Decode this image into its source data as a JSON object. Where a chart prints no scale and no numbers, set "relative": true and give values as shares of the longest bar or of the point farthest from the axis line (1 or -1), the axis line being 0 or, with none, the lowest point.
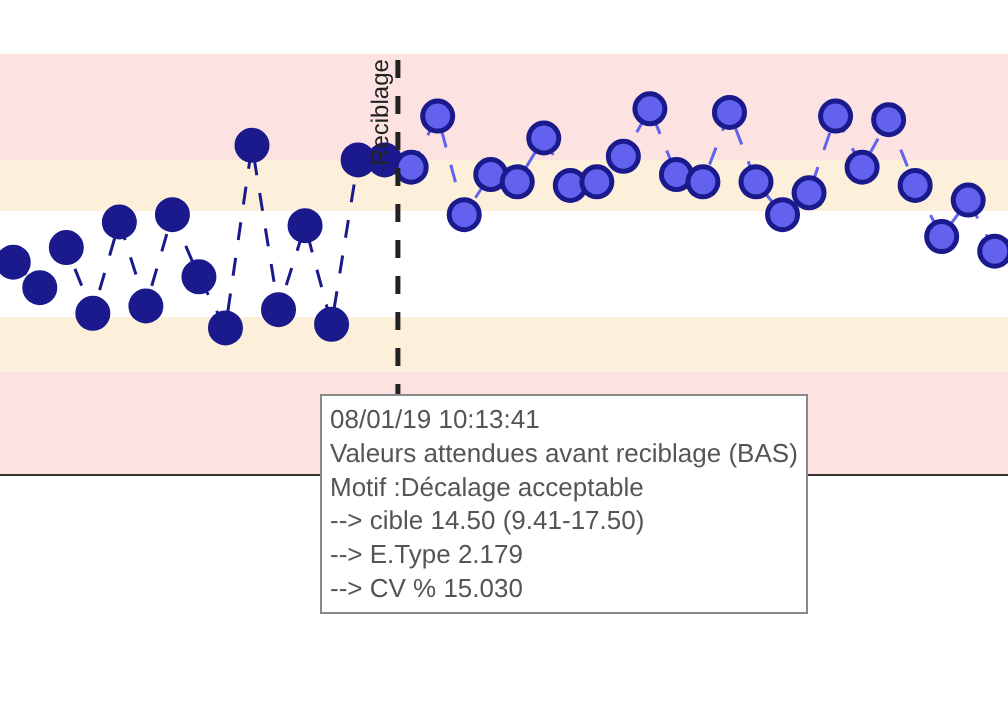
{
  "chart_data": {
    "type": "line",
    "relative": true,
    "marker": "circle",
    "line_style": "dashed",
    "categories": [
      null,
      null,
      null,
      null,
      null,
      null,
      null,
      null,
      null,
      null,
      null,
      null,
      null,
      null,
      null,
      null,
      null,
      null,
      null,
      null,
      null,
      null,
      null,
      null,
      null,
      null,
      null,
      null,
      null,
      null,
      null,
      null,
      null,
      null,
      null,
      null,
      null,
      null
    ],
    "series": [
      {
        "color": "#1a1a8c",
        "values": [
          0.58,
          0.51,
          0.62,
          0.44,
          0.69,
          0.46,
          0.71,
          0.54,
          0.4,
          0.9,
          0.45,
          0.68,
          0.41,
          0.86,
          0.86,
          null,
          null,
          null,
          null,
          null,
          null,
          null,
          null,
          null,
          null,
          null,
          null,
          null,
          null,
          null,
          null,
          null,
          null,
          null,
          null,
          null,
          null,
          null
        ]
      },
      {
        "color": "#6262ee",
        "values": [
          null,
          null,
          null,
          null,
          null,
          null,
          null,
          null,
          null,
          null,
          null,
          null,
          null,
          null,
          null,
          0.84,
          0.98,
          0.71,
          0.82,
          0.8,
          0.92,
          0.79,
          0.8,
          0.87,
          1.0,
          0.82,
          0.8,
          0.99,
          0.8,
          0.71,
          0.77,
          0.98,
          0.84,
          0.97,
          0.79,
          0.65,
          0.75,
          0.61
        ]
      }
    ],
    "bands": [
      {
        "axis": "y",
        "from": 0,
        "to": 0.28,
        "color": "#fde2e2"
      },
      {
        "axis": "y",
        "from": 0.28,
        "to": 0.43,
        "color": "#fdf0da"
      },
      {
        "axis": "y",
        "from": 0.72,
        "to": 0.86,
        "color": "#fdf0da"
      },
      {
        "axis": "y",
        "from": 0.86,
        "to": 1.15,
        "color": "#fde2e2"
      }
    ],
    "ref_lines": [
      {
        "axis": "x",
        "label": "Reciblage",
        "line_style": "dashed",
        "color": "#222222"
      }
    ],
    "annotations": [
      "08/01/19 10:13:41\nValeurs attendues avant reciblage (BAS)\nMotif :Décalage acceptable\n--> cible 14.50 (9.41-17.50)\n--> E.Type 2.179\n--> CV % 15.030"
    ]
  }
}
